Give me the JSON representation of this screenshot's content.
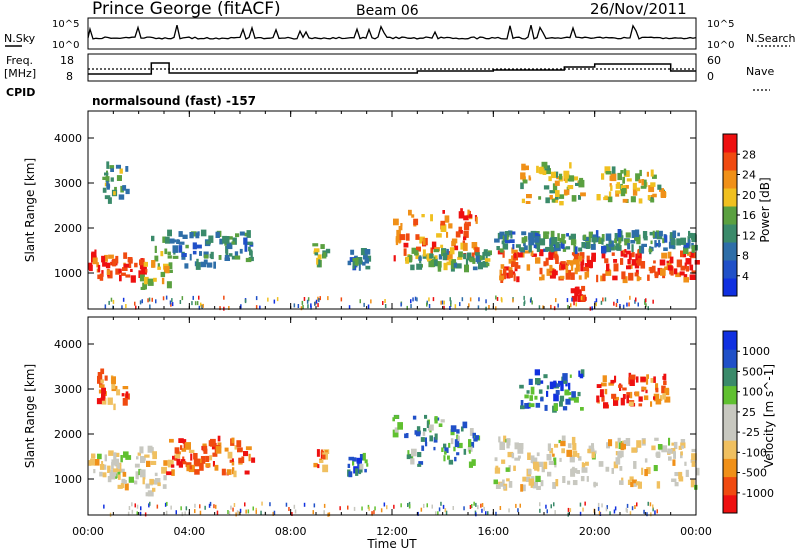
{
  "header": {
    "station": "Prince George (fitACF)",
    "beam": "Beam 06",
    "date": "26/Nov/2011"
  },
  "status_panel": {
    "nsky_label": "N.Sky",
    "nsky_ticks": [
      "10^5",
      "10^0"
    ],
    "nsearch_label": "N.Search",
    "freq_label": "Freq.",
    "freq_unit": "[MHz]",
    "freq_ticks": [
      "18",
      "8"
    ],
    "nave_label": "Nave",
    "nave_ticks": [
      "60",
      "0"
    ],
    "cpid_label": "CPID",
    "cpid_value": "normalsound (fast) -157"
  },
  "colors": {
    "power_scale": [
      "#1030e0",
      "#2050c8",
      "#2e6ea8",
      "#3a8a6a",
      "#5aa040",
      "#f0c020",
      "#f09018",
      "#f04a10",
      "#ee1010"
    ],
    "velocity_scale": [
      "#ee1010",
      "#f04a10",
      "#f09018",
      "#f0c060",
      "#c8c8c0",
      "#c8c8c0",
      "#60c030",
      "#3a8a6a",
      "#2050c8",
      "#1030e0"
    ]
  },
  "chart_data": [
    {
      "type": "heatmap",
      "panel": "power",
      "ylabel": "Slant Range [km]",
      "xlabel": "",
      "x_ticks": [
        "00:00",
        "04:00",
        "08:00",
        "12:00",
        "16:00",
        "20:00",
        "00:00"
      ],
      "y_ticks": [
        "1000",
        "2000",
        "3000",
        "4000"
      ],
      "ylim": [
        200,
        4600
      ],
      "xlim_hours": [
        0,
        24
      ],
      "colorbar_label": "Power [dB]",
      "colorbar_ticks": [
        "4",
        "8",
        "12",
        "16",
        "20",
        "24",
        "28"
      ],
      "regions": [
        {
          "t0": 0.0,
          "t1": 2.3,
          "r0": 850,
          "r1": 1450,
          "level": 0.9
        },
        {
          "t0": 2.0,
          "t1": 3.2,
          "r0": 650,
          "r1": 1900,
          "level": 0.6
        },
        {
          "t0": 3.0,
          "t1": 6.5,
          "r0": 1150,
          "r1": 1900,
          "level": 0.35
        },
        {
          "t0": 0.3,
          "t1": 1.5,
          "r0": 2600,
          "r1": 3400,
          "level": 0.4
        },
        {
          "t0": 8.8,
          "t1": 9.4,
          "r0": 1200,
          "r1": 1650,
          "level": 0.5
        },
        {
          "t0": 10.2,
          "t1": 11.0,
          "r0": 1100,
          "r1": 1500,
          "level": 0.3
        },
        {
          "t0": 12.0,
          "t1": 15.3,
          "r0": 1300,
          "r1": 2400,
          "level": 0.8
        },
        {
          "t0": 12.5,
          "t1": 15.8,
          "r0": 1100,
          "r1": 1500,
          "level": 0.45
        },
        {
          "t0": 16.0,
          "t1": 24.0,
          "r0": 850,
          "r1": 1500,
          "level": 0.85
        },
        {
          "t0": 16.0,
          "t1": 24.0,
          "r0": 1500,
          "r1": 1900,
          "level": 0.35
        },
        {
          "t0": 17.0,
          "t1": 19.5,
          "r0": 2550,
          "r1": 3400,
          "level": 0.55
        },
        {
          "t0": 20.0,
          "t1": 22.8,
          "r0": 2600,
          "r1": 3300,
          "level": 0.6
        },
        {
          "t0": 19.0,
          "t1": 19.5,
          "r0": 400,
          "r1": 800,
          "level": 0.95
        }
      ]
    },
    {
      "type": "heatmap",
      "panel": "velocity",
      "ylabel": "Slant Range [km]",
      "xlabel": "Time UT",
      "x_ticks": [
        "00:00",
        "04:00",
        "08:00",
        "12:00",
        "16:00",
        "20:00",
        "00:00"
      ],
      "y_ticks": [
        "1000",
        "2000",
        "3000",
        "4000"
      ],
      "ylim": [
        200,
        4600
      ],
      "xlim_hours": [
        0,
        24
      ],
      "colorbar_label": "Velocity [m s^-1]",
      "colorbar_ticks": [
        "1000",
        "500",
        "100",
        "25",
        "-25",
        "-100",
        "-500",
        "-1000"
      ],
      "regions": [
        {
          "t0": 0.0,
          "t1": 2.3,
          "r0": 800,
          "r1": 1600,
          "level": 0.45
        },
        {
          "t0": 2.0,
          "t1": 3.0,
          "r0": 600,
          "r1": 1700,
          "level": 0.45
        },
        {
          "t0": 3.0,
          "t1": 6.5,
          "r0": 1100,
          "r1": 1900,
          "level": 0.15
        },
        {
          "t0": 0.3,
          "t1": 1.5,
          "r0": 2600,
          "r1": 3400,
          "level": 0.2
        },
        {
          "t0": 8.8,
          "t1": 9.4,
          "r0": 1200,
          "r1": 1650,
          "level": 0.2
        },
        {
          "t0": 10.2,
          "t1": 11.0,
          "r0": 1100,
          "r1": 1500,
          "level": 0.75
        },
        {
          "t0": 12.0,
          "t1": 15.3,
          "r0": 1300,
          "r1": 2400,
          "level": 0.7
        },
        {
          "t0": 16.0,
          "t1": 24.0,
          "r0": 800,
          "r1": 1900,
          "level": 0.45
        },
        {
          "t0": 17.0,
          "t1": 19.5,
          "r0": 2550,
          "r1": 3400,
          "level": 0.8
        },
        {
          "t0": 20.0,
          "t1": 22.8,
          "r0": 2600,
          "r1": 3300,
          "level": 0.15
        }
      ]
    }
  ]
}
